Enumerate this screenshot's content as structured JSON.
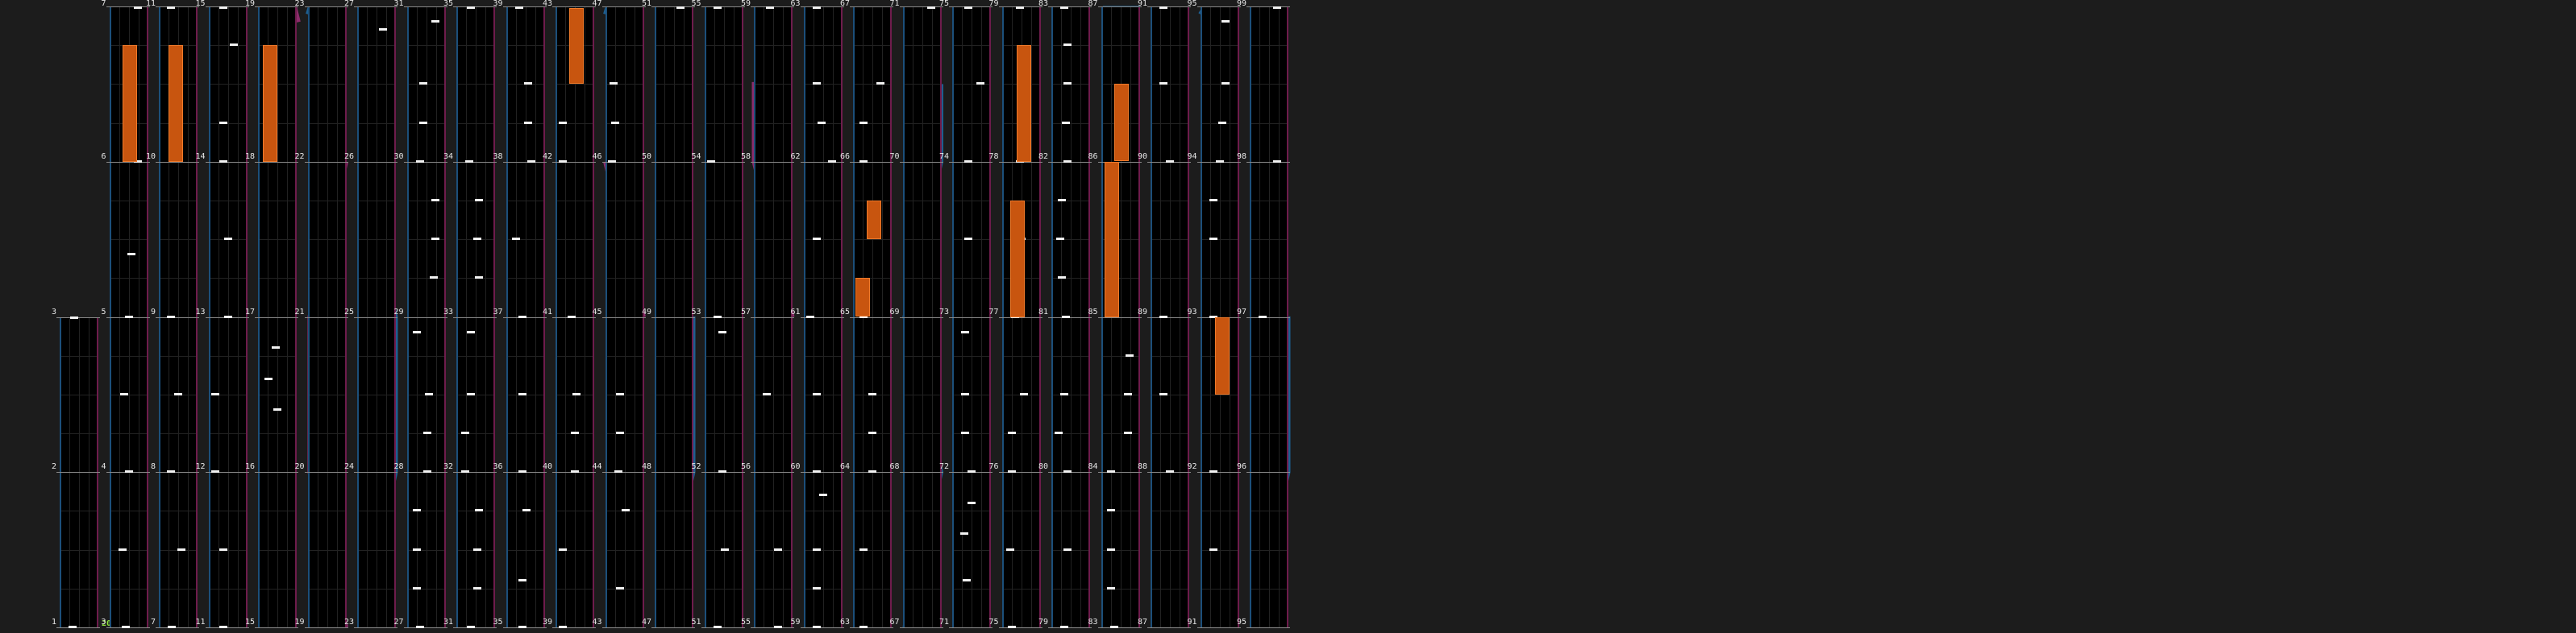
{
  "combo_label": "200",
  "colors": {
    "background": "#1c1c1c",
    "lane_bg": "#000000",
    "lane_left_edge": "#1c4f7a",
    "lane_right_edge": "#6e1c4c",
    "measure_line": "#8a8a8a",
    "tap_note": "#f2f2f2",
    "hold_note": "#c8550f",
    "slide_blue": "#1d5f91",
    "slide_magenta": "#8c2c6b",
    "combo_text": "#8ee23a"
  },
  "measure_labels": [
    "1",
    "2",
    "3",
    "3",
    "4",
    "5",
    "6",
    "7",
    "7",
    "8",
    "9",
    "10",
    "11",
    "11",
    "12",
    "13",
    "14",
    "15",
    "15",
    "16",
    "17",
    "18",
    "19",
    "19",
    "20",
    "21",
    "22",
    "23",
    "23",
    "24",
    "25",
    "26",
    "27",
    "27",
    "28",
    "29",
    "30",
    "31",
    "31",
    "32",
    "33",
    "34",
    "35",
    "35",
    "36",
    "37",
    "38",
    "39",
    "39",
    "40",
    "41",
    "42",
    "43",
    "43",
    "44",
    "45",
    "46",
    "47",
    "47",
    "48",
    "49",
    "50",
    "51",
    "51",
    "52",
    "53",
    "54",
    "55",
    "55",
    "56",
    "57",
    "58",
    "59",
    "59",
    "60",
    "61",
    "62",
    "63",
    "63",
    "64",
    "65",
    "66",
    "67",
    "67",
    "68",
    "69",
    "70",
    "71",
    "71",
    "72",
    "73",
    "74",
    "75",
    "75",
    "76",
    "77",
    "78",
    "79",
    "79",
    "80",
    "81",
    "82",
    "83",
    "83",
    "84",
    "85",
    "86",
    "87",
    "87",
    "88",
    "89",
    "90",
    "91",
    "91",
    "92",
    "93",
    "94",
    "95",
    "95",
    "96",
    "97",
    "98",
    "99"
  ],
  "lane_count": 25,
  "chart_data": {
    "type": "table",
    "columns": [
      {
        "measures_from_bottom": [
          "1",
          "2",
          "3"
        ]
      },
      {
        "measures_from_bottom": [
          "3",
          "4",
          "5",
          "6",
          "7"
        ]
      },
      {
        "measures_from_bottom": [
          "7",
          "8",
          "9",
          "10",
          "11"
        ]
      },
      {
        "measures_from_bottom": [
          "11",
          "12",
          "13",
          "14",
          "15"
        ]
      },
      {
        "measures_from_bottom": [
          "15",
          "16",
          "17",
          "18",
          "19"
        ]
      },
      {
        "measures_from_bottom": [
          "19",
          "20",
          "21",
          "22",
          "23"
        ]
      },
      {
        "measures_from_bottom": [
          "23",
          "24",
          "25",
          "26",
          "27"
        ]
      },
      {
        "measures_from_bottom": [
          "27",
          "28",
          "29",
          "30",
          "31"
        ]
      },
      {
        "measures_from_bottom": [
          "31",
          "32",
          "33",
          "34",
          "35"
        ]
      },
      {
        "measures_from_bottom": [
          "35",
          "36",
          "37",
          "38",
          "39"
        ]
      },
      {
        "measures_from_bottom": [
          "39",
          "40",
          "41",
          "42",
          "43"
        ]
      },
      {
        "measures_from_bottom": [
          "43",
          "44",
          "45",
          "46",
          "47"
        ]
      },
      {
        "measures_from_bottom": [
          "47",
          "48",
          "49",
          "50",
          "51"
        ]
      },
      {
        "measures_from_bottom": [
          "51",
          "52",
          "53",
          "54",
          "55"
        ]
      },
      {
        "measures_from_bottom": [
          "55",
          "56",
          "57",
          "58",
          "59"
        ]
      },
      {
        "measures_from_bottom": [
          "59",
          "60",
          "61",
          "62",
          "63"
        ]
      },
      {
        "measures_from_bottom": [
          "63",
          "64",
          "65",
          "66",
          "67"
        ]
      },
      {
        "measures_from_bottom": [
          "67",
          "68",
          "69",
          "70",
          "71"
        ]
      },
      {
        "measures_from_bottom": [
          "71",
          "72",
          "73",
          "74",
          "75"
        ]
      },
      {
        "measures_from_bottom": [
          "75",
          "76",
          "77",
          "78",
          "79"
        ]
      },
      {
        "measures_from_bottom": [
          "79",
          "80",
          "81",
          "82",
          "83"
        ]
      },
      {
        "measures_from_bottom": [
          "83",
          "84",
          "85",
          "86",
          "87"
        ]
      },
      {
        "measures_from_bottom": [
          "87",
          "88",
          "89",
          "90",
          "91"
        ]
      },
      {
        "measures_from_bottom": [
          "91",
          "92",
          "93",
          "94",
          "95"
        ]
      },
      {
        "measures_from_bottom": [
          "95",
          "96",
          "97",
          "98",
          "99"
        ]
      }
    ]
  }
}
